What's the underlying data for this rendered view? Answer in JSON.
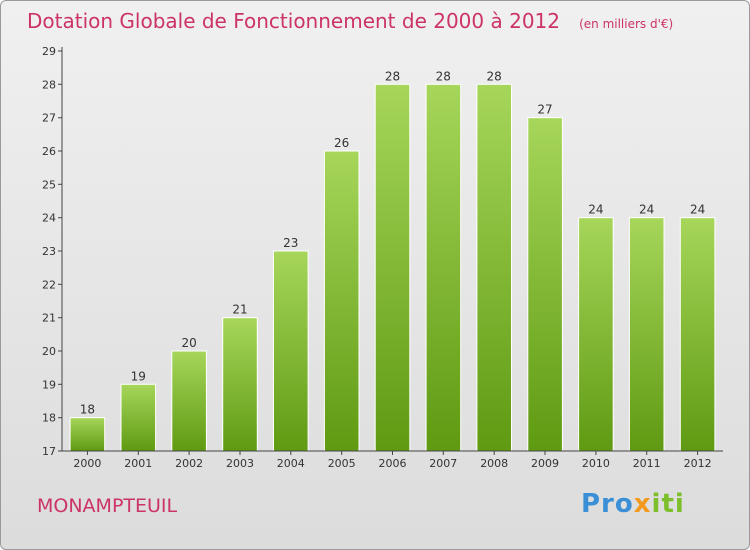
{
  "title": "Dotation Globale de Fonctionnement de 2000 à 2012",
  "unit": "(en milliers d'€)",
  "commune": "MONAMPTEUIL",
  "logo": {
    "part1": "Pro",
    "part2": "x",
    "part3": "iti"
  },
  "colors": {
    "title": "#cc3366",
    "bar_light": "#a6d65a",
    "bar_dark": "#5f9a12",
    "axis": "#444444"
  },
  "chart_data": {
    "type": "bar",
    "categories": [
      "2000",
      "2001",
      "2002",
      "2003",
      "2004",
      "2005",
      "2006",
      "2007",
      "2008",
      "2009",
      "2010",
      "2011",
      "2012"
    ],
    "values": [
      18,
      19,
      20,
      21,
      23,
      26,
      28,
      28,
      28,
      27,
      24,
      24,
      24
    ],
    "data_labels": [
      "18",
      "19",
      "20",
      "21",
      "23",
      "26",
      "28",
      "28",
      "28",
      "27",
      "24",
      "24",
      "24"
    ],
    "y_ticks": [
      "17",
      "18",
      "19",
      "20",
      "21",
      "22",
      "23",
      "24",
      "25",
      "26",
      "27",
      "28",
      "29"
    ],
    "ylim": [
      17,
      29
    ],
    "xlabel": "",
    "ylabel": "",
    "grid": false,
    "legend": "none"
  }
}
